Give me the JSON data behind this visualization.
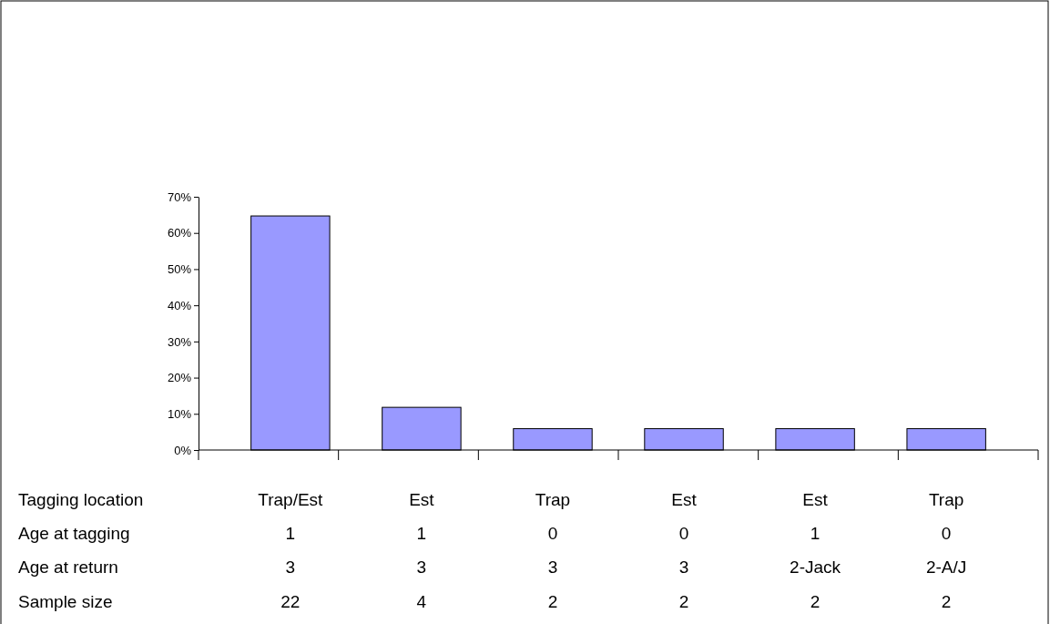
{
  "chart_data": {
    "type": "bar",
    "categories": [
      "Trap/Est",
      "Est",
      "Trap",
      "Est",
      "Est",
      "Trap"
    ],
    "values": [
      64.7,
      11.8,
      5.9,
      5.9,
      5.9,
      5.9
    ],
    "color": "#9999ff",
    "xlabel": "Tagging location",
    "ylim": [
      0,
      70
    ],
    "yticks": [
      {
        "value": 0,
        "label": "0%"
      },
      {
        "value": 10,
        "label": "10%"
      },
      {
        "value": 20,
        "label": "20%"
      },
      {
        "value": 30,
        "label": "30%"
      },
      {
        "value": 40,
        "label": "40%"
      },
      {
        "value": 50,
        "label": "50%"
      },
      {
        "value": 60,
        "label": "60%"
      },
      {
        "value": 70,
        "label": "70%"
      }
    ],
    "grid": false,
    "annotations": [
      "Age at tagging",
      "1",
      "1",
      "0",
      "0",
      "1",
      "0",
      "Age at return",
      "3",
      "3",
      "3",
      "3",
      "2-Jack",
      "2-A/J",
      "Sample size",
      "22",
      "4",
      "2",
      "2",
      "2",
      "2"
    ]
  }
}
